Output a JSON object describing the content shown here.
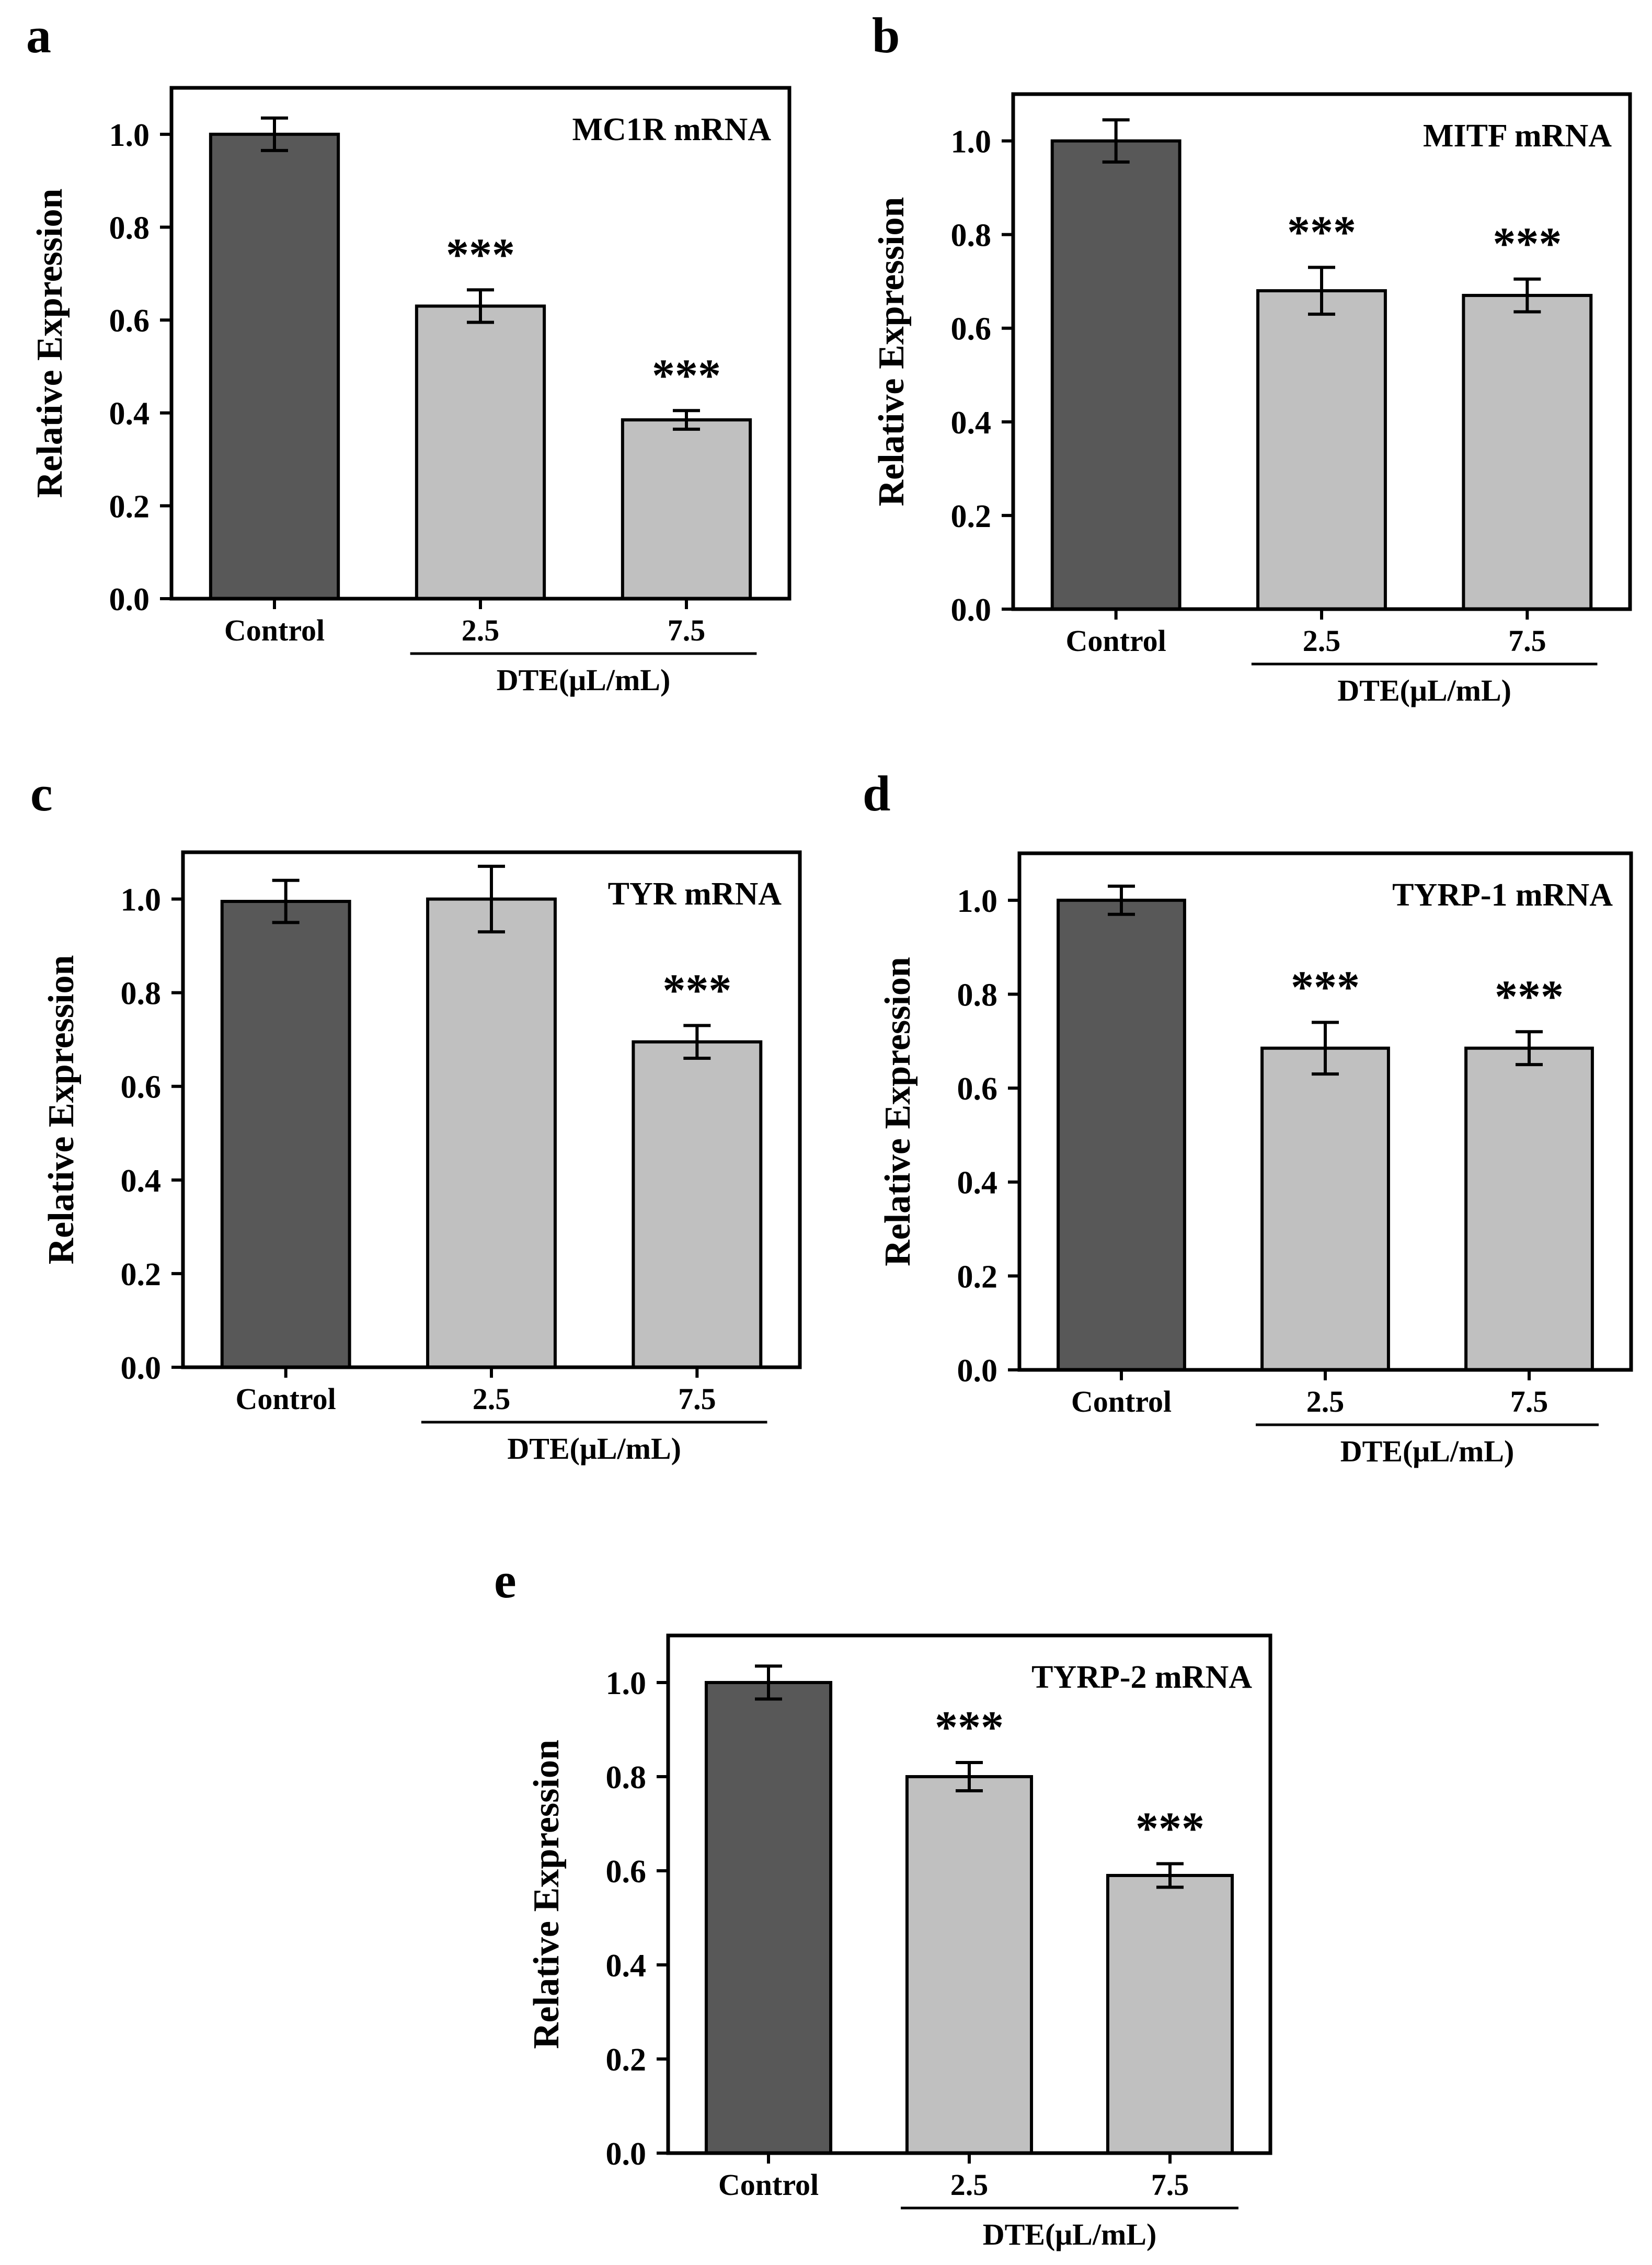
{
  "figure": {
    "y_axis_label": "Relative Expression",
    "group_label": "DTE(μL/mL)",
    "colors": {
      "control_bar": "#585858",
      "treated_bar": "#c0c0c0",
      "stroke": "#000000"
    }
  },
  "chart_data": [
    {
      "panel": "a",
      "type": "bar",
      "title": "MC1R mRNA",
      "categories": [
        "Control",
        "2.5",
        "7.5"
      ],
      "values": [
        1.0,
        0.63,
        0.385
      ],
      "errors": [
        0.035,
        0.035,
        0.02
      ],
      "significance": [
        "",
        "***",
        "***"
      ],
      "ylabel": "Relative Expression",
      "xlabel": "DTE(μL/mL)",
      "ylim": [
        0,
        1.1
      ],
      "yticks": [
        "0.0",
        "0.2",
        "0.4",
        "0.6",
        "0.8",
        "1.0"
      ]
    },
    {
      "panel": "b",
      "type": "bar",
      "title": "MITF mRNA",
      "categories": [
        "Control",
        "2.5",
        "7.5"
      ],
      "values": [
        1.0,
        0.68,
        0.67
      ],
      "errors": [
        0.045,
        0.05,
        0.035
      ],
      "significance": [
        "",
        "***",
        "***"
      ],
      "ylabel": "Relative Expression",
      "xlabel": "DTE(μL/mL)",
      "ylim": [
        0,
        1.1
      ],
      "yticks": [
        "0.0",
        "0.2",
        "0.4",
        "0.6",
        "0.8",
        "1.0"
      ]
    },
    {
      "panel": "c",
      "type": "bar",
      "title": "TYR mRNA",
      "categories": [
        "Control",
        "2.5",
        "7.5"
      ],
      "values": [
        0.995,
        1.0,
        0.695
      ],
      "errors": [
        0.045,
        0.07,
        0.035
      ],
      "significance": [
        "",
        "",
        "***"
      ],
      "ylabel": "Relative Expression",
      "xlabel": "DTE(μL/mL)",
      "ylim": [
        0,
        1.1
      ],
      "yticks": [
        "0.0",
        "0.2",
        "0.4",
        "0.6",
        "0.8",
        "1.0"
      ]
    },
    {
      "panel": "d",
      "type": "bar",
      "title": "TYRP-1 mRNA",
      "categories": [
        "Control",
        "2.5",
        "7.5"
      ],
      "values": [
        1.0,
        0.685,
        0.685
      ],
      "errors": [
        0.03,
        0.055,
        0.035
      ],
      "significance": [
        "",
        "***",
        "***"
      ],
      "ylabel": "Relative Expression",
      "xlabel": "DTE(μL/mL)",
      "ylim": [
        0,
        1.1
      ],
      "yticks": [
        "0.0",
        "0.2",
        "0.4",
        "0.6",
        "0.8",
        "1.0"
      ]
    },
    {
      "panel": "e",
      "type": "bar",
      "title": "TYRP-2 mRNA",
      "categories": [
        "Control",
        "2.5",
        "7.5"
      ],
      "values": [
        1.0,
        0.8,
        0.59
      ],
      "errors": [
        0.035,
        0.03,
        0.025
      ],
      "significance": [
        "",
        "***",
        "***"
      ],
      "ylabel": "Relative Expression",
      "xlabel": "DTE(μL/mL)",
      "ylim": [
        0,
        1.1
      ],
      "yticks": [
        "0.0",
        "0.2",
        "0.4",
        "0.6",
        "0.8",
        "1.0"
      ]
    }
  ]
}
